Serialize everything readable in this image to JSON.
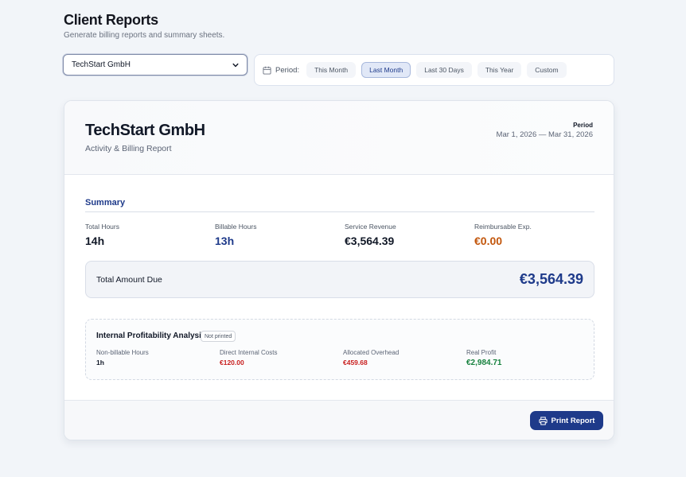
{
  "header": {
    "title": "Client Reports",
    "subtitle": "Generate billing reports and summary sheets."
  },
  "client_select": {
    "value": "TechStart GmbH"
  },
  "period_bar": {
    "label": "Period:",
    "options": [
      "This Month",
      "Last Month",
      "Last 30 Days",
      "This Year",
      "Custom"
    ],
    "selected": "Last Month"
  },
  "report": {
    "client_name": "TechStart GmbH",
    "report_type": "Activity & Billing Report",
    "period_caption": "Period",
    "period_range": "Mar 1, 2026 — Mar 31, 2026",
    "summary": {
      "title": "Summary",
      "stats": [
        {
          "label": "Total Hours",
          "value": "14h"
        },
        {
          "label": "Billable Hours",
          "value": "13h"
        },
        {
          "label": "Service Revenue",
          "value": "€3,564.39"
        },
        {
          "label": "Reimbursable Exp.",
          "value": "€0.00"
        }
      ]
    },
    "total": {
      "label": "Total Amount Due",
      "value": "€3,564.39"
    },
    "internal": {
      "title": "Internal Profitability Analysis",
      "badge": "Not printed",
      "stats": [
        {
          "label": "Non-billable Hours",
          "value": "1h"
        },
        {
          "label": "Direct Internal Costs",
          "value": "€120.00"
        },
        {
          "label": "Allocated Overhead",
          "value": "€459.68"
        },
        {
          "label": "Real Profit",
          "value": "€2,984.71"
        }
      ]
    },
    "print_button": "Print Report"
  },
  "colors": {
    "accent": "#1e3a8a",
    "expense_orange": "#c2560c",
    "cost_red": "#c81e1e",
    "profit_green": "#15803d",
    "background": "#f2f5f9"
  },
  "icons": {
    "select_chevron": "chevron-down-icon",
    "period": "calendar-icon",
    "print": "printer-icon"
  }
}
